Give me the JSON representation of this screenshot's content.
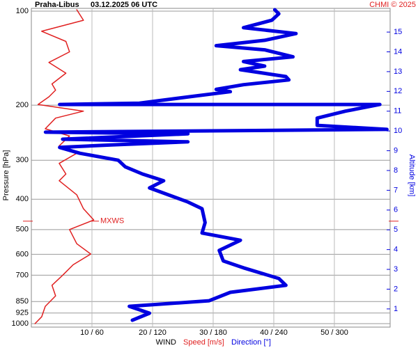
{
  "chart_data": {
    "type": "line",
    "title": "Praha-Libus",
    "subtitle": "03.12.2025 06 UTC",
    "credit": "CHMI © 2025",
    "ylabel": "Pressure [hPa]",
    "y2label": "Altitude [km]",
    "xlabel": "WIND",
    "log_y": true,
    "grid": true,
    "ylim": [
      1026,
      98
    ],
    "yticks": [
      100,
      200,
      300,
      400,
      500,
      600,
      700,
      850,
      925,
      1000
    ],
    "y2lim": [
      0.08,
      16.2
    ],
    "y2ticks": [
      1,
      2,
      3,
      4,
      5,
      6,
      7,
      8,
      9,
      10,
      11,
      12,
      13,
      14,
      15
    ],
    "xlim": [
      0,
      59.2
    ],
    "x2lim": [
      0,
      355.2
    ],
    "xticks": [
      {
        "value": 10,
        "label": "10 / 60"
      },
      {
        "value": 20,
        "label": "20 / 120"
      },
      {
        "value": 30,
        "label": "30 / 180"
      },
      {
        "value": 40,
        "label": "40 / 240"
      },
      {
        "value": 50,
        "label": "50 / 300"
      }
    ],
    "annotation": {
      "text": "MXWS",
      "pressure": 470,
      "color": "#e02020"
    },
    "series": [
      {
        "name": "Speed [m/s]",
        "color": "#e02020",
        "width": 1.5,
        "pressure": [
          99,
          107,
          116,
          125,
          135,
          146,
          158,
          171,
          179,
          188,
          199,
          209,
          220,
          238,
          251,
          270,
          285,
          307,
          332,
          349,
          387,
          429,
          466,
          500,
          555,
          599,
          648,
          699,
          754,
          815,
          880,
          951,
          1000
        ],
        "values": [
          7.5,
          8.6,
          1.7,
          5.7,
          6.3,
          2.9,
          5.7,
          3.4,
          4.0,
          2.9,
          1.1,
          8.6,
          4.0,
          2.3,
          6.3,
          4.6,
          7.5,
          4.6,
          5.7,
          4.6,
          7.5,
          8.6,
          10.3,
          6.3,
          7.5,
          9.8,
          6.9,
          5.2,
          3.4,
          4.0,
          2.3,
          1.7,
          0.6
        ]
      },
      {
        "name": "Direction [°]",
        "color": "#0000e0",
        "width": 5,
        "axis": "x2",
        "pressure": [
          99,
          102,
          107,
          113,
          118,
          124,
          129,
          133,
          140,
          145,
          150,
          154,
          162,
          166,
          172,
          178,
          181,
          187,
          197,
          199,
          199,
          209,
          220,
          232,
          239,
          244,
          247,
          257,
          262,
          268,
          273,
          285,
          300,
          315,
          332,
          349,
          368,
          408,
          429,
          475,
          513,
          541,
          583,
          630,
          663,
          717,
          754,
          794,
          845,
          880,
          926,
          975
        ],
        "values": [
          241,
          245,
          238,
          210,
          262,
          231,
          183,
          231,
          259,
          210,
          231,
          207,
          252,
          255,
          210,
          183,
          197,
          162,
          107,
          28,
          345,
          311,
          283,
          283,
          352,
          14,
          155,
          31,
          155,
          79,
          28,
          48,
          86,
          93,
          110,
          131,
          117,
          155,
          169,
          172,
          169,
          207,
          186,
          190,
          210,
          245,
          252,
          197,
          176,
          97,
          117,
          100
        ]
      }
    ]
  }
}
